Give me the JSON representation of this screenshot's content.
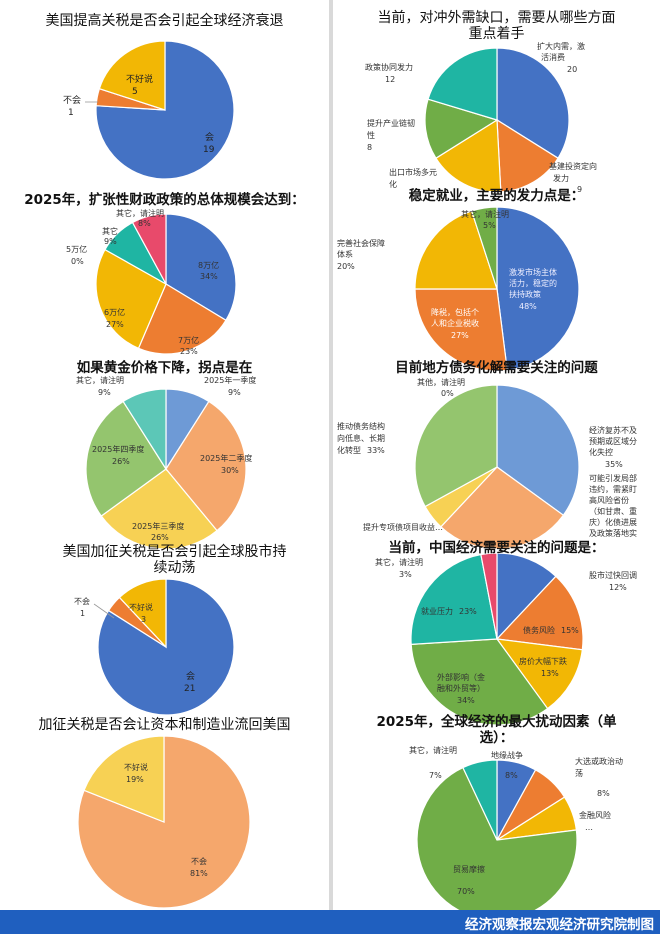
{
  "chart_data": [
    {
      "id": "c1",
      "type": "pie",
      "title": "美国提高关税是否会引起全球经济衰退",
      "slices": [
        {
          "name": "会",
          "value": 19,
          "label": "19",
          "color": "#4472c4"
        },
        {
          "name": "不会",
          "value": 1,
          "label": "1",
          "color": "#ed7d31"
        },
        {
          "name": "不好说",
          "value": 5,
          "label": "5",
          "color": "#f2b705"
        }
      ]
    },
    {
      "id": "c2",
      "type": "pie",
      "title": "2025年，扩张性财政政策的总体规模会达到：",
      "slices": [
        {
          "name": "8万亿",
          "value": 34,
          "label": "34%",
          "color": "#4472c4"
        },
        {
          "name": "7万亿",
          "value": 23,
          "label": "23%",
          "color": "#ed7d31"
        },
        {
          "name": "6万亿",
          "value": 27,
          "label": "27%",
          "color": "#f2b705"
        },
        {
          "name": "5万亿",
          "value": 0,
          "label": "0%",
          "color": "#70ad47"
        },
        {
          "name": "其它",
          "value": 9,
          "label": "9%",
          "color": "#1fb5a3"
        },
        {
          "name": "其它，请注明",
          "value": 8,
          "label": "8%",
          "color": "#e84a6b"
        }
      ]
    },
    {
      "id": "c3",
      "type": "pie",
      "title": "如果黄金价格下降，拐点是在",
      "slices": [
        {
          "name": "2025年一季度",
          "value": 9,
          "label": "9%",
          "color": "#6e9ad6"
        },
        {
          "name": "2025年二季度",
          "value": 30,
          "label": "30%",
          "color": "#f5a76c"
        },
        {
          "name": "2025年三季度",
          "value": 26,
          "label": "26%",
          "color": "#f7d154"
        },
        {
          "name": "2025年四季度",
          "value": 26,
          "label": "26%",
          "color": "#94c56e"
        },
        {
          "name": "其它，请注明",
          "value": 9,
          "label": "9%",
          "color": "#5cc7b7"
        }
      ]
    },
    {
      "id": "c4",
      "type": "pie",
      "title": "美国加征关税是否会引起全球股市持续动荡",
      "slices": [
        {
          "name": "会",
          "value": 21,
          "label": "21",
          "color": "#4472c4"
        },
        {
          "name": "不会",
          "value": 1,
          "label": "1",
          "color": "#ed7d31"
        },
        {
          "name": "不好说",
          "value": 3,
          "label": "3",
          "color": "#f2b705"
        }
      ]
    },
    {
      "id": "c5",
      "type": "pie",
      "title": "加征关税是否会让资本和制造业流回美国",
      "slices": [
        {
          "name": "不会",
          "value": 81,
          "label": "81%",
          "color": "#f5a76c"
        },
        {
          "name": "不好说",
          "value": 19,
          "label": "19%",
          "color": "#f7d154"
        }
      ]
    },
    {
      "id": "c6",
      "type": "pie",
      "title": "当前，对冲外需缺口，需要从哪些方面重点着手",
      "slices": [
        {
          "name": "扩大内需，激活消费",
          "value": 20,
          "label": "20",
          "color": "#4472c4"
        },
        {
          "name": "基建投资定向发力",
          "value": 9,
          "label": "9",
          "color": "#ed7d31"
        },
        {
          "name": "出口市场多元化",
          "value": 10,
          "label": "",
          "color": "#f2b705"
        },
        {
          "name": "提升产业链韧性",
          "value": 8,
          "label": "8",
          "color": "#70ad47"
        },
        {
          "name": "政策协同发力",
          "value": 12,
          "label": "12",
          "color": "#1fb5a3"
        }
      ]
    },
    {
      "id": "c7",
      "type": "pie",
      "title": "稳定就业，主要的发力点是：",
      "slices": [
        {
          "name": "激发市场主体活力，稳定的扶持政策",
          "value": 48,
          "label": "48%",
          "color": "#4472c4"
        },
        {
          "name": "降税，包括个人和企业税收",
          "value": 27,
          "label": "27%",
          "color": "#ed7d31"
        },
        {
          "name": "完善社会保障体系",
          "value": 20,
          "label": "20%",
          "color": "#f2b705"
        },
        {
          "name": "其它，请注明",
          "value": 5,
          "label": "5%",
          "color": "#70ad47"
        }
      ]
    },
    {
      "id": "c8",
      "type": "pie",
      "title": "目前地方债务化解需要关注的问题",
      "slices": [
        {
          "name": "经济复苏不及预期或区域分化失控",
          "value": 35,
          "label": "35%",
          "color": "#6e9ad6"
        },
        {
          "name": "可能引发局部违约，需紧盯高风险省份（如甘肃、重庆）化债进展及政策落地实",
          "value": 27,
          "label": "",
          "color": "#f5a76c"
        },
        {
          "name": "提升专项债项目收益…",
          "value": 5,
          "label": "",
          "color": "#f7d154"
        },
        {
          "name": "推动债务结构向低息、长期化转型",
          "value": 33,
          "label": "33%",
          "color": "#94c56e"
        },
        {
          "name": "其他，请注明",
          "value": 0,
          "label": "0%",
          "color": "#5cc7b7"
        }
      ]
    },
    {
      "id": "c9",
      "type": "pie",
      "title": "当前，中国经济需要关注的问题是：",
      "slices": [
        {
          "name": "股市过快回调",
          "value": 12,
          "label": "12%",
          "color": "#4472c4"
        },
        {
          "name": "债务风险",
          "value": 15,
          "label": "15%",
          "color": "#ed7d31"
        },
        {
          "name": "房价大幅下跌",
          "value": 13,
          "label": "13%",
          "color": "#f2b705"
        },
        {
          "name": "外部影响（金融和外贸等）",
          "value": 34,
          "label": "34%",
          "color": "#70ad47"
        },
        {
          "name": "就业压力",
          "value": 23,
          "label": "23%",
          "color": "#1fb5a3"
        },
        {
          "name": "其它，请注明",
          "value": 3,
          "label": "3%",
          "color": "#e84a6b"
        }
      ]
    },
    {
      "id": "c10",
      "type": "pie",
      "title": "2025年，全球经济的最大扰动因素（单选）：",
      "slices": [
        {
          "name": "地缘战争",
          "value": 8,
          "label": "8%",
          "color": "#4472c4"
        },
        {
          "name": "大选或政治动荡",
          "value": 8,
          "label": "8%",
          "color": "#ed7d31"
        },
        {
          "name": "金融风险",
          "value": 7,
          "label": "…",
          "color": "#f2b705"
        },
        {
          "name": "贸易摩擦",
          "value": 70,
          "label": "70%",
          "color": "#70ad47"
        },
        {
          "name": "其它，请注明",
          "value": 7,
          "label": "7%",
          "color": "#1fb5a3"
        }
      ]
    }
  ],
  "footer": {
    "text": "经济观察报宏观经济研究院制图"
  }
}
